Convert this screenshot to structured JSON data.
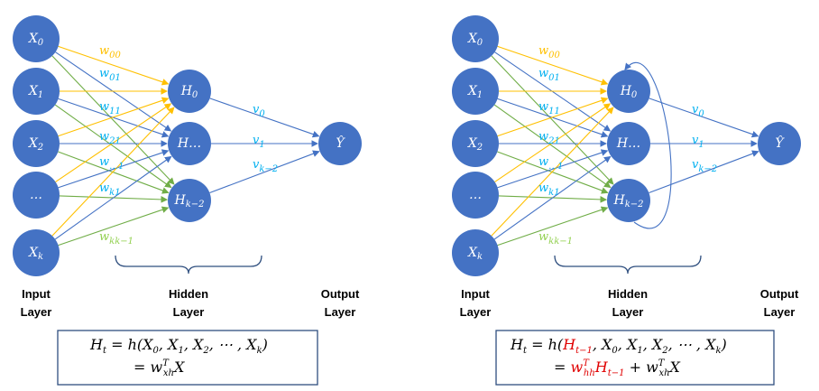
{
  "colors": {
    "node": "#4472C4",
    "edge_yellow": "#FFC000",
    "edge_green": "#70AD47",
    "edge_blue": "#4472C4",
    "label_blue": "#00B0F0",
    "label_yellow": "#FFC000",
    "label_green": "#92D050",
    "highlight_red": "#E00000"
  },
  "nodes": {
    "inputs": [
      "X0",
      "X1",
      "X2",
      "…",
      "Xk"
    ],
    "hidden": [
      "H0",
      "H…",
      "Hk−2"
    ],
    "output": "Ŷ"
  },
  "weights": {
    "w": [
      "w00",
      "w01",
      "w11",
      "w21",
      "w…1",
      "wk1",
      "wkk−1"
    ],
    "v": [
      "v0",
      "v1",
      "vk−2"
    ]
  },
  "labels": {
    "input_layer": [
      "Input",
      "Layer"
    ],
    "hidden_layer": [
      "Hidden",
      "Layer"
    ],
    "output_layer": [
      "Output",
      "Layer"
    ]
  },
  "equations": {
    "left": {
      "line1": "Ht = h(X0, X1, X2, ⋯ , Xk)",
      "line2": "= wxhT X"
    },
    "right": {
      "line1": "Ht = h(Ht−1, X0, X1, X2, ⋯ , Xk)",
      "line2": "= whhT Ht−1 + wxhT X"
    }
  }
}
